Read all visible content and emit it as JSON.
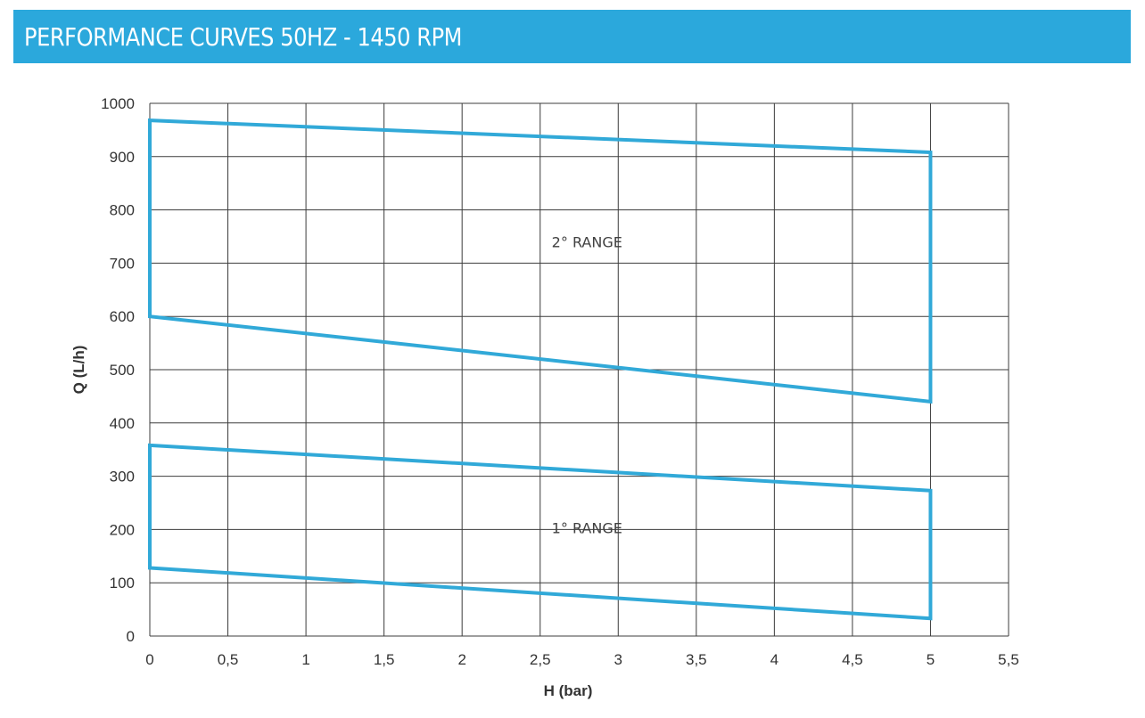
{
  "header": {
    "title": "PERFORMANCE CURVES 50HZ - 1450 RPM"
  },
  "colors": {
    "header_bg": "#2ba8dc",
    "series": "#31a9d8",
    "grid": "#3c3c3c"
  },
  "chart_data": {
    "type": "area",
    "title": "PERFORMANCE CURVES 50HZ - 1450 RPM",
    "xlabel": "H (bar)",
    "ylabel": "Q (L/h)",
    "xlim": [
      0,
      5.5
    ],
    "ylim": [
      0,
      1000
    ],
    "x_ticks": [
      "0",
      "0,5",
      "1",
      "1,5",
      "2",
      "2,5",
      "3",
      "3,5",
      "4",
      "4,5",
      "5",
      "5,5"
    ],
    "y_ticks": [
      "0",
      "100",
      "200",
      "300",
      "400",
      "500",
      "600",
      "700",
      "800",
      "900",
      "1000"
    ],
    "grid": true,
    "series": [
      {
        "name": "2° RANGE",
        "polygon": [
          [
            0,
            600
          ],
          [
            0,
            968
          ],
          [
            5,
            908
          ],
          [
            5,
            440
          ]
        ],
        "label_at": [
          2.8,
          740
        ]
      },
      {
        "name": "1° RANGE",
        "polygon": [
          [
            0,
            128
          ],
          [
            0,
            358
          ],
          [
            5,
            273
          ],
          [
            5,
            33
          ]
        ],
        "label_at": [
          2.8,
          203
        ]
      }
    ]
  }
}
